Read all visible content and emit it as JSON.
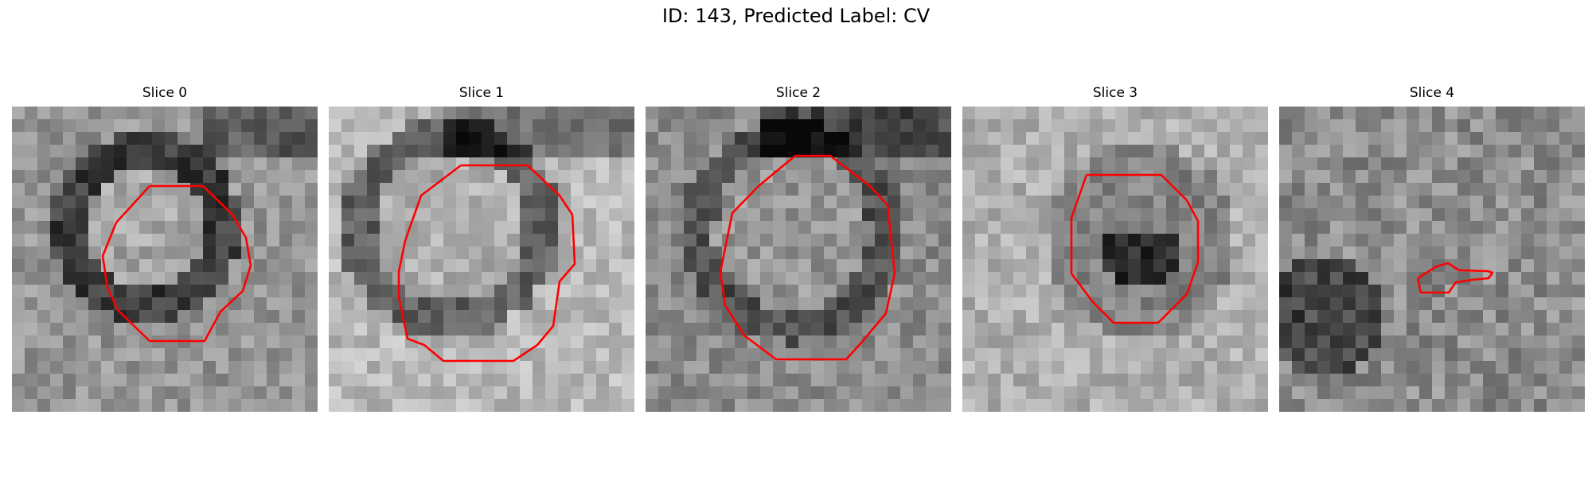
{
  "figure": {
    "title": "ID: 143, Predicted Label: CV"
  },
  "panels": [
    {
      "title": "Slice 0"
    },
    {
      "title": "Slice 1"
    },
    {
      "title": "Slice 2"
    },
    {
      "title": "Slice 3"
    },
    {
      "title": "Slice 4"
    }
  ],
  "colors": {
    "contour": "#ff0000",
    "background": "#ffffff",
    "text": "#000000"
  },
  "colormap": "gray"
}
